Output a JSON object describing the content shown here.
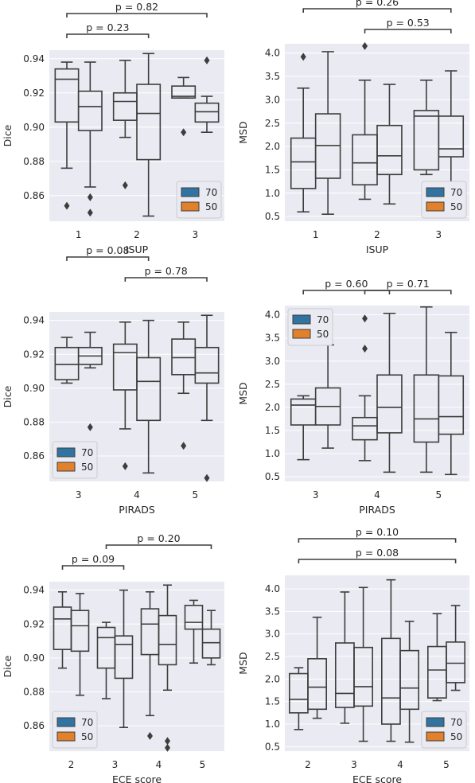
{
  "colors": {
    "70": "#3274a1",
    "50": "#e1812c",
    "background": "#eaeaf2"
  },
  "chart_data": [
    {
      "type": "box",
      "id": "isup-dice",
      "xlabel": "ISUP",
      "ylabel": "Dice",
      "categories": [
        "1",
        "2",
        "3"
      ],
      "ylim": [
        0.845,
        0.945
      ],
      "yticks": [
        0.86,
        0.88,
        0.9,
        0.92,
        0.94
      ],
      "ytick_labels": [
        "0.86",
        "0.88",
        "0.90",
        "0.92",
        "0.94"
      ],
      "legend": {
        "position": "lower-right",
        "entries": [
          "70",
          "50"
        ]
      },
      "series": [
        {
          "name": "70",
          "boxes": [
            {
              "q1": 0.903,
              "median": 0.928,
              "q3": 0.934,
              "whislo": 0.876,
              "whishi": 0.938,
              "fliers": [
                0.854
              ]
            },
            {
              "q1": 0.904,
              "median": 0.915,
              "q3": 0.92,
              "whislo": 0.894,
              "whishi": 0.939,
              "fliers": [
                0.866
              ]
            },
            {
              "q1": 0.917,
              "median": 0.918,
              "q3": 0.924,
              "whislo": 0.917,
              "whishi": 0.929,
              "fliers": [
                0.897
              ]
            }
          ]
        },
        {
          "name": "50",
          "boxes": [
            {
              "q1": 0.898,
              "median": 0.912,
              "q3": 0.921,
              "whislo": 0.865,
              "whishi": 0.938,
              "fliers": [
                0.859,
                0.85
              ]
            },
            {
              "q1": 0.881,
              "median": 0.908,
              "q3": 0.925,
              "whislo": 0.848,
              "whishi": 0.943,
              "fliers": []
            },
            {
              "q1": 0.903,
              "median": 0.909,
              "q3": 0.914,
              "whislo": 0.897,
              "whishi": 0.918,
              "fliers": [
                0.939
              ]
            }
          ]
        }
      ],
      "annotations": [
        {
          "text": "p = 0.23",
          "from": 0,
          "to": 1,
          "level": 0
        },
        {
          "text": "p = 0.82",
          "from": 0,
          "to": 2,
          "level": 1
        }
      ]
    },
    {
      "type": "box",
      "id": "isup-msd",
      "xlabel": "ISUP",
      "ylabel": "MSD",
      "categories": [
        "1",
        "2",
        "3"
      ],
      "ylim": [
        0.4,
        4.2
      ],
      "yticks": [
        0.5,
        1.0,
        1.5,
        2.0,
        2.5,
        3.0,
        3.5,
        4.0
      ],
      "ytick_labels": [
        "0.5",
        "1.0",
        "1.5",
        "2.0",
        "2.5",
        "3.0",
        "3.5",
        "4.0"
      ],
      "legend": {
        "position": "lower-right",
        "entries": [
          "70",
          "50"
        ]
      },
      "series": [
        {
          "name": "70",
          "boxes": [
            {
              "q1": 1.1,
              "median": 1.67,
              "q3": 2.18,
              "whislo": 0.6,
              "whishi": 3.25,
              "fliers": [
                3.92
              ]
            },
            {
              "q1": 1.18,
              "median": 1.65,
              "q3": 2.25,
              "whislo": 0.87,
              "whishi": 3.42,
              "fliers": [
                4.15
              ]
            },
            {
              "q1": 1.5,
              "median": 2.65,
              "q3": 2.77,
              "whislo": 1.4,
              "whishi": 3.42,
              "fliers": []
            }
          ]
        },
        {
          "name": "50",
          "boxes": [
            {
              "q1": 1.32,
              "median": 2.02,
              "q3": 2.7,
              "whislo": 0.55,
              "whishi": 4.03,
              "fliers": []
            },
            {
              "q1": 1.4,
              "median": 1.8,
              "q3": 2.45,
              "whislo": 0.77,
              "whishi": 3.33,
              "fliers": []
            },
            {
              "q1": 1.78,
              "median": 1.95,
              "q3": 2.65,
              "whislo": 1.2,
              "whishi": 3.62,
              "fliers": []
            }
          ]
        }
      ],
      "annotations": [
        {
          "text": "p = 0.53",
          "from": 1,
          "to": 2,
          "level": 0
        },
        {
          "text": "p = 0.26",
          "from": 0,
          "to": 2,
          "level": 1
        }
      ]
    },
    {
      "type": "box",
      "id": "pirads-dice",
      "xlabel": "PIRADS",
      "ylabel": "Dice",
      "categories": [
        "3",
        "4",
        "5"
      ],
      "ylim": [
        0.845,
        0.945
      ],
      "yticks": [
        0.86,
        0.88,
        0.9,
        0.92,
        0.94
      ],
      "ytick_labels": [
        "0.86",
        "0.88",
        "0.90",
        "0.92",
        "0.94"
      ],
      "legend": {
        "position": "lower-left",
        "entries": [
          "70",
          "50"
        ]
      },
      "series": [
        {
          "name": "70",
          "boxes": [
            {
              "q1": 0.905,
              "median": 0.914,
              "q3": 0.924,
              "whislo": 0.903,
              "whishi": 0.93,
              "fliers": []
            },
            {
              "q1": 0.899,
              "median": 0.921,
              "q3": 0.926,
              "whislo": 0.876,
              "whishi": 0.939,
              "fliers": [
                0.854
              ]
            },
            {
              "q1": 0.908,
              "median": 0.918,
              "q3": 0.929,
              "whislo": 0.897,
              "whishi": 0.939,
              "fliers": [
                0.866
              ]
            }
          ]
        },
        {
          "name": "50",
          "boxes": [
            {
              "q1": 0.914,
              "median": 0.919,
              "q3": 0.924,
              "whislo": 0.912,
              "whishi": 0.933,
              "fliers": [
                0.877
              ]
            },
            {
              "q1": 0.881,
              "median": 0.904,
              "q3": 0.918,
              "whislo": 0.85,
              "whishi": 0.94,
              "fliers": []
            },
            {
              "q1": 0.903,
              "median": 0.909,
              "q3": 0.924,
              "whislo": 0.881,
              "whishi": 0.943,
              "fliers": [
                0.847
              ]
            }
          ]
        }
      ],
      "annotations": [
        {
          "text": "p = 0.78",
          "from": 1,
          "to": 2,
          "level": 0
        },
        {
          "text": "p = 0.08",
          "from": 0,
          "to": 1,
          "level": 1
        }
      ]
    },
    {
      "type": "box",
      "id": "pirads-msd",
      "xlabel": "PIRADS",
      "ylabel": "MSD",
      "categories": [
        "3",
        "4",
        "5"
      ],
      "ylim": [
        0.4,
        4.2
      ],
      "yticks": [
        0.5,
        1.0,
        1.5,
        2.0,
        2.5,
        3.0,
        3.5,
        4.0
      ],
      "ytick_labels": [
        "0.5",
        "1.0",
        "1.5",
        "2.0",
        "2.5",
        "3.0",
        "3.5",
        "4.0"
      ],
      "legend": {
        "position": "upper-left",
        "entries": [
          "70",
          "50"
        ]
      },
      "series": [
        {
          "name": "70",
          "boxes": [
            {
              "q1": 1.62,
              "median": 2.05,
              "q3": 2.18,
              "whislo": 0.87,
              "whishi": 2.25,
              "fliers": []
            },
            {
              "q1": 1.3,
              "median": 1.6,
              "q3": 1.78,
              "whislo": 0.85,
              "whishi": 2.25,
              "fliers": [
                3.92,
                3.27
              ]
            },
            {
              "q1": 1.25,
              "median": 1.75,
              "q3": 2.7,
              "whislo": 0.6,
              "whishi": 4.17,
              "fliers": []
            }
          ]
        },
        {
          "name": "50",
          "boxes": [
            {
              "q1": 1.62,
              "median": 2.02,
              "q3": 2.42,
              "whislo": 1.12,
              "whishi": 3.35,
              "fliers": []
            },
            {
              "q1": 1.45,
              "median": 2.0,
              "q3": 2.7,
              "whislo": 0.6,
              "whishi": 4.03,
              "fliers": []
            },
            {
              "q1": 1.42,
              "median": 1.8,
              "q3": 2.68,
              "whislo": 0.55,
              "whishi": 3.62,
              "fliers": []
            }
          ]
        }
      ],
      "annotations": [
        {
          "text": "p = 0.60",
          "from": 0,
          "to": 1,
          "level": 0
        },
        {
          "text": "p = 0.71",
          "from": 1,
          "to": 2,
          "level": 0
        }
      ]
    },
    {
      "type": "box",
      "id": "ece-dice",
      "xlabel": "ECE score",
      "ylabel": "Dice",
      "categories": [
        "2",
        "3",
        "4",
        "5"
      ],
      "ylim": [
        0.845,
        0.945
      ],
      "yticks": [
        0.86,
        0.88,
        0.9,
        0.92,
        0.94
      ],
      "ytick_labels": [
        "0.86",
        "0.88",
        "0.90",
        "0.92",
        "0.94"
      ],
      "legend": {
        "position": "lower-left",
        "entries": [
          "70",
          "50"
        ]
      },
      "series": [
        {
          "name": "70",
          "boxes": [
            {
              "q1": 0.905,
              "median": 0.923,
              "q3": 0.93,
              "whislo": 0.894,
              "whishi": 0.939,
              "fliers": []
            },
            {
              "q1": 0.894,
              "median": 0.912,
              "q3": 0.918,
              "whislo": 0.876,
              "whishi": 0.921,
              "fliers": []
            },
            {
              "q1": 0.902,
              "median": 0.92,
              "q3": 0.929,
              "whislo": 0.866,
              "whishi": 0.939,
              "fliers": [
                0.854
              ]
            },
            {
              "q1": 0.917,
              "median": 0.921,
              "q3": 0.931,
              "whislo": 0.897,
              "whishi": 0.934,
              "fliers": []
            }
          ]
        },
        {
          "name": "50",
          "boxes": [
            {
              "q1": 0.904,
              "median": 0.919,
              "q3": 0.928,
              "whislo": 0.878,
              "whishi": 0.938,
              "fliers": []
            },
            {
              "q1": 0.888,
              "median": 0.908,
              "q3": 0.913,
              "whislo": 0.859,
              "whishi": 0.94,
              "fliers": []
            },
            {
              "q1": 0.896,
              "median": 0.908,
              "q3": 0.925,
              "whislo": 0.881,
              "whishi": 0.943,
              "fliers": [
                0.851,
                0.847
              ]
            },
            {
              "q1": 0.9,
              "median": 0.909,
              "q3": 0.917,
              "whislo": 0.896,
              "whishi": 0.928,
              "fliers": []
            }
          ]
        }
      ],
      "annotations": [
        {
          "text": "p = 0.09",
          "from": 0,
          "to": 1,
          "level": 0
        },
        {
          "text": "p = 0.20",
          "from": 1,
          "to": 3,
          "level": 1
        }
      ]
    },
    {
      "type": "box",
      "id": "ece-msd",
      "xlabel": "ECE score",
      "ylabel": "MSD",
      "categories": [
        "2",
        "3",
        "4",
        "5"
      ],
      "ylim": [
        0.4,
        4.3
      ],
      "yticks": [
        0.5,
        1.0,
        1.5,
        2.0,
        2.5,
        3.0,
        3.5,
        4.0
      ],
      "ytick_labels": [
        "0.5",
        "1.0",
        "1.5",
        "2.0",
        "2.5",
        "3.0",
        "3.5",
        "4.0"
      ],
      "legend": {
        "position": "lower-right",
        "entries": [
          "70",
          "50"
        ]
      },
      "series": [
        {
          "name": "70",
          "boxes": [
            {
              "q1": 1.25,
              "median": 1.55,
              "q3": 2.12,
              "whislo": 0.88,
              "whishi": 2.25,
              "fliers": []
            },
            {
              "q1": 1.37,
              "median": 1.68,
              "q3": 2.8,
              "whislo": 1.02,
              "whishi": 3.93,
              "fliers": []
            },
            {
              "q1": 1.0,
              "median": 1.58,
              "q3": 2.9,
              "whislo": 0.62,
              "whishi": 4.2,
              "fliers": []
            },
            {
              "q1": 1.58,
              "median": 2.2,
              "q3": 2.72,
              "whislo": 1.52,
              "whishi": 3.45,
              "fliers": []
            }
          ]
        },
        {
          "name": "50",
          "boxes": [
            {
              "q1": 1.33,
              "median": 1.82,
              "q3": 2.45,
              "whislo": 1.13,
              "whishi": 3.37,
              "fliers": []
            },
            {
              "q1": 1.4,
              "median": 1.83,
              "q3": 2.7,
              "whislo": 0.62,
              "whishi": 4.03,
              "fliers": []
            },
            {
              "q1": 1.33,
              "median": 1.8,
              "q3": 2.63,
              "whislo": 0.6,
              "whishi": 3.28,
              "fliers": []
            },
            {
              "q1": 1.92,
              "median": 2.35,
              "q3": 2.82,
              "whislo": 1.75,
              "whishi": 3.63,
              "fliers": []
            }
          ]
        }
      ],
      "annotations": [
        {
          "text": "p = 0.08",
          "from": 0,
          "to": 3,
          "level": 0
        },
        {
          "text": "p = 0.10",
          "from": 0,
          "to": 3,
          "level": 1
        }
      ]
    }
  ]
}
